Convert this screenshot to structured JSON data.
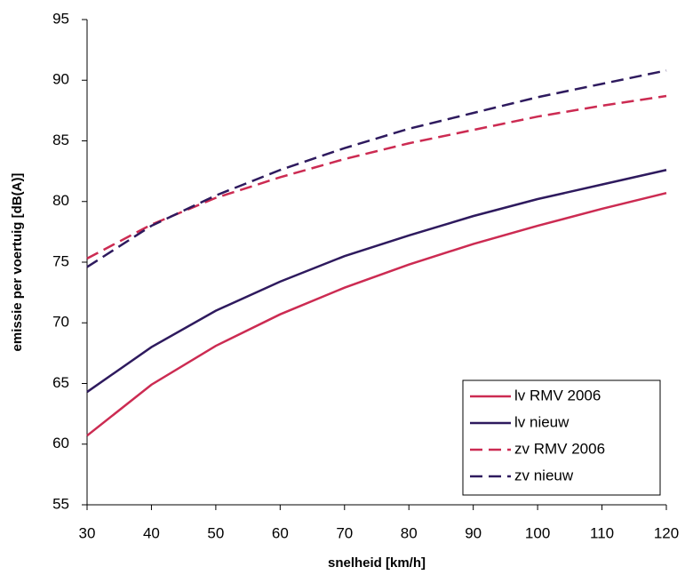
{
  "chart_data": {
    "type": "line",
    "x_label": "snelheid [km/h]",
    "y_label": "emissie per voertuig [dB(A)]",
    "x": [
      30,
      40,
      50,
      60,
      70,
      80,
      90,
      100,
      110,
      120
    ],
    "series": [
      {
        "name": "lv RMV 2006",
        "color": "#cc2b52",
        "dash": false,
        "values": [
          60.7,
          64.9,
          68.1,
          70.7,
          72.9,
          74.8,
          76.5,
          78.0,
          79.4,
          80.7
        ]
      },
      {
        "name": "lv nieuw",
        "color": "#2e1a5e",
        "dash": false,
        "values": [
          64.3,
          68.0,
          71.0,
          73.4,
          75.5,
          77.2,
          78.8,
          80.2,
          81.4,
          82.6
        ]
      },
      {
        "name": "zv RMV 2006",
        "color": "#cc2b52",
        "dash": true,
        "values": [
          75.3,
          78.1,
          80.3,
          82.0,
          83.5,
          84.8,
          85.9,
          87.0,
          87.9,
          88.7
        ]
      },
      {
        "name": "zv nieuw",
        "color": "#2e1a5e",
        "dash": true,
        "values": [
          74.6,
          78.0,
          80.5,
          82.6,
          84.4,
          86.0,
          87.3,
          88.6,
          89.7,
          90.8
        ]
      }
    ],
    "xlim": [
      30,
      120
    ],
    "ylim": [
      55,
      95
    ],
    "xticks": [
      30,
      40,
      50,
      60,
      70,
      80,
      90,
      100,
      110,
      120
    ],
    "yticks": [
      55,
      60,
      65,
      70,
      75,
      80,
      85,
      90,
      95
    ],
    "grid": false,
    "legend": "lower right"
  }
}
